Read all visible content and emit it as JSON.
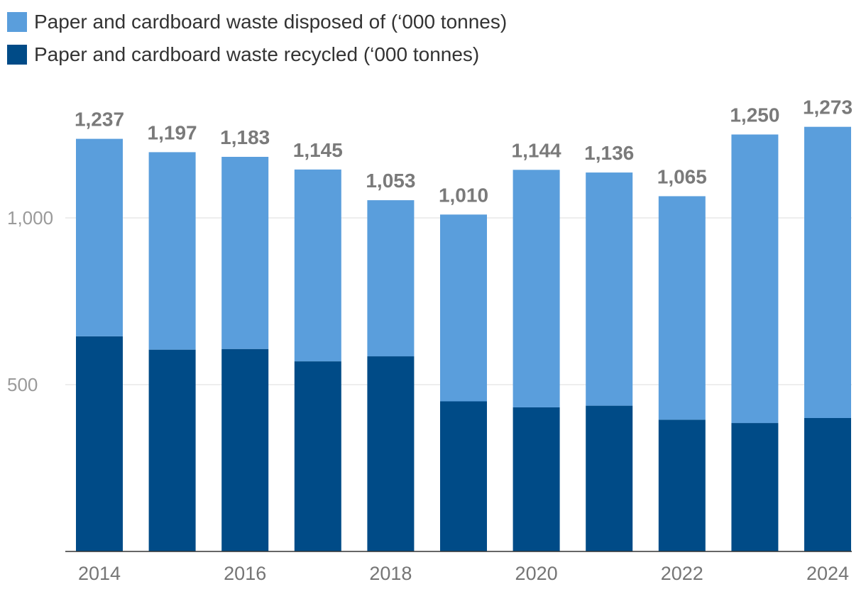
{
  "chart_data": {
    "type": "bar",
    "stacked": true,
    "title": "",
    "xlabel": "",
    "ylabel": "",
    "categories": [
      "2014",
      "2015",
      "2016",
      "2017",
      "2018",
      "2019",
      "2020",
      "2021",
      "2022",
      "2023",
      "2024"
    ],
    "x_tick_labels": [
      "2014",
      "",
      "2016",
      "",
      "2018",
      "",
      "2020",
      "",
      "2022",
      "",
      "2024"
    ],
    "series": [
      {
        "name": "Paper and cardboard waste recycled (‘000 tonnes)",
        "color": "#004b87",
        "values": [
          645,
          605,
          607,
          570,
          585,
          450,
          432,
          437,
          395,
          385,
          400
        ]
      },
      {
        "name": "Paper and cardboard waste disposed of (‘000 tonnes)",
        "color": "#5a9edc",
        "values": [
          592,
          592,
          576,
          575,
          468,
          560,
          712,
          699,
          670,
          865,
          873
        ]
      }
    ],
    "totals": [
      1237,
      1197,
      1183,
      1145,
      1053,
      1010,
      1144,
      1136,
      1065,
      1250,
      1273
    ],
    "total_labels": [
      "1,237",
      "1,197",
      "1,183",
      "1,145",
      "1,053",
      "1,010",
      "1,144",
      "1,136",
      "1,065",
      "1,250",
      "1,273"
    ],
    "y_ticks": [
      500,
      1000
    ],
    "y_tick_labels": [
      "500",
      "1,000"
    ],
    "ylim": [
      0,
      1400
    ],
    "grid": true,
    "legend_position": "top-left"
  },
  "legend": [
    {
      "label": "Paper and cardboard waste disposed of (‘000 tonnes)",
      "color": "#5a9edc"
    },
    {
      "label": "Paper and cardboard waste recycled (‘000 tonnes)",
      "color": "#004b87"
    }
  ]
}
